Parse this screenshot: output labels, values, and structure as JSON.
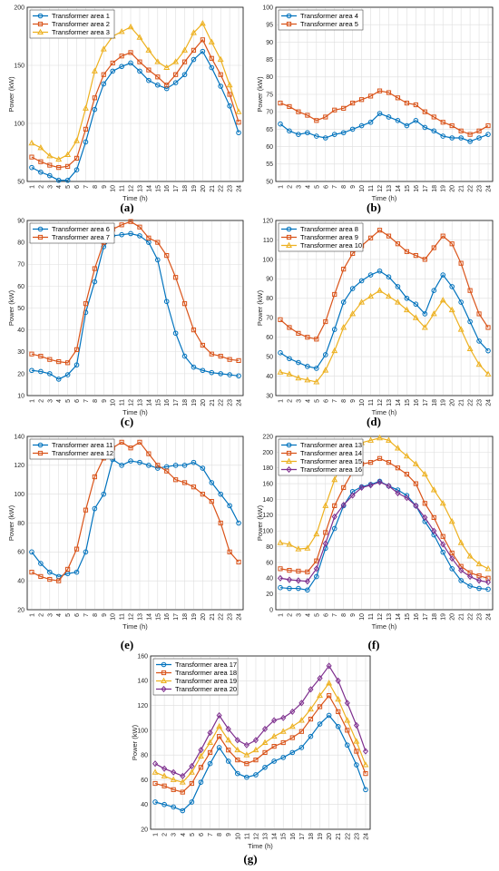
{
  "colors": {
    "blue": "#0072BD",
    "orange": "#D95319",
    "yellow": "#EDB120",
    "purple": "#7E2F8E",
    "grid": "#dedede",
    "axis": "#262626"
  },
  "chart_data": [
    {
      "type": "line",
      "panel": "(a)",
      "xlabel": "Time (h)",
      "ylabel": "Power (kW)",
      "x": [
        1,
        2,
        3,
        4,
        5,
        6,
        7,
        8,
        9,
        10,
        11,
        12,
        13,
        14,
        15,
        16,
        17,
        18,
        19,
        20,
        21,
        22,
        23,
        24
      ],
      "xticks": [
        "1",
        "2",
        "3",
        "4",
        "5",
        "6",
        "7",
        "8",
        "9",
        "10",
        "11",
        "12",
        "13",
        "14",
        "15",
        "16",
        "17",
        "18",
        "19",
        "20",
        "21",
        "22",
        "23",
        "24"
      ],
      "ylim": [
        50,
        200
      ],
      "yticks": [
        50,
        100,
        150,
        200
      ],
      "grid": true,
      "legend": "top-left",
      "series": [
        {
          "name": "Transformer area 1",
          "color": "#0072BD",
          "marker": "circle",
          "values": [
            62,
            58,
            55,
            51,
            51,
            60,
            84,
            112,
            134,
            145,
            149,
            152,
            145,
            137,
            133,
            130,
            135,
            142,
            155,
            162,
            148,
            132,
            115,
            92
          ]
        },
        {
          "name": "Transformer area 2",
          "color": "#D95319",
          "marker": "square",
          "values": [
            71,
            67,
            64,
            62,
            63,
            70,
            95,
            122,
            142,
            152,
            158,
            161,
            153,
            146,
            140,
            133,
            142,
            153,
            163,
            172,
            156,
            142,
            125,
            101
          ]
        },
        {
          "name": "Transformer area 3",
          "color": "#EDB120",
          "marker": "triangle",
          "values": [
            83,
            79,
            72,
            69,
            73,
            85,
            113,
            145,
            164,
            175,
            179,
            183,
            174,
            163,
            153,
            148,
            153,
            163,
            178,
            186,
            170,
            155,
            133,
            110
          ]
        }
      ]
    },
    {
      "type": "line",
      "panel": "(b)",
      "xlabel": "Time (h)",
      "ylabel": "Power (kW)",
      "x": [
        1,
        2,
        3,
        4,
        5,
        6,
        7,
        8,
        9,
        10,
        11,
        12,
        13,
        14,
        15,
        16,
        17,
        18,
        19,
        20,
        21,
        22,
        23,
        24
      ],
      "xticks": [
        "1",
        "2",
        "3",
        "4",
        "5",
        "6",
        "7",
        "8",
        "9",
        "10",
        "11",
        "12",
        "13",
        "14",
        "15",
        "16",
        "17",
        "18",
        "19",
        "20",
        "21",
        "22",
        "23",
        "24"
      ],
      "ylim": [
        50,
        100
      ],
      "yticks": [
        50,
        55,
        60,
        65,
        70,
        75,
        80,
        85,
        90,
        95,
        100
      ],
      "grid": true,
      "legend": "top-left",
      "series": [
        {
          "name": "Transformer area 4",
          "color": "#0072BD",
          "marker": "circle",
          "values": [
            66.5,
            64.5,
            63.5,
            64,
            63,
            62.5,
            63.5,
            64,
            65,
            66,
            67,
            69.5,
            68.5,
            67.5,
            66,
            67.5,
            65.5,
            64.5,
            63,
            62.5,
            62.5,
            61.5,
            62.5,
            63.5
          ]
        },
        {
          "name": "Transformer area 5",
          "color": "#D95319",
          "marker": "square",
          "values": [
            72.5,
            71.5,
            70,
            69,
            67.5,
            68.5,
            70.5,
            71,
            72.5,
            73.5,
            74.5,
            76,
            75.5,
            74,
            72.5,
            72,
            70,
            68.5,
            67,
            66,
            64.5,
            63.5,
            64.5,
            66
          ]
        }
      ]
    },
    {
      "type": "line",
      "panel": "(c)",
      "xlabel": "Time (h)",
      "ylabel": "Power (kW)",
      "x": [
        1,
        2,
        3,
        4,
        5,
        6,
        7,
        8,
        9,
        10,
        11,
        12,
        13,
        14,
        15,
        16,
        17,
        18,
        19,
        20,
        21,
        22,
        23,
        24
      ],
      "xticks": [
        "1",
        "2",
        "3",
        "4",
        "5",
        "6",
        "7",
        "8",
        "9",
        "10",
        "11",
        "12",
        "13",
        "14",
        "15",
        "16",
        "17",
        "18",
        "19",
        "20",
        "21",
        "22",
        "23",
        "24"
      ],
      "ylim": [
        10,
        90
      ],
      "yticks": [
        10,
        20,
        30,
        40,
        50,
        60,
        70,
        80,
        90
      ],
      "grid": true,
      "legend": "top-left",
      "series": [
        {
          "name": "Transformer area 6",
          "color": "#0072BD",
          "marker": "circle",
          "values": [
            21.5,
            21,
            20,
            17.5,
            19.5,
            24,
            48,
            62,
            78,
            83,
            83.5,
            84,
            83,
            80,
            72,
            53,
            38.5,
            28,
            23,
            21.5,
            20.5,
            20,
            19.5,
            19
          ]
        },
        {
          "name": "Transformer area 7",
          "color": "#D95319",
          "marker": "square",
          "values": [
            29,
            28,
            26.5,
            25.5,
            25,
            31,
            52,
            68,
            80,
            86,
            88,
            89.5,
            87,
            82,
            80,
            74,
            64,
            52,
            40,
            33,
            29,
            28,
            26.5,
            26
          ]
        }
      ]
    },
    {
      "type": "line",
      "panel": "(d)",
      "xlabel": "Time (h)",
      "ylabel": "Power (kW)",
      "x": [
        1,
        2,
        3,
        4,
        5,
        6,
        7,
        8,
        9,
        10,
        11,
        12,
        13,
        14,
        15,
        16,
        17,
        18,
        19,
        20,
        21,
        22,
        23,
        24
      ],
      "xticks": [
        "1",
        "2",
        "3",
        "4",
        "5",
        "6",
        "7",
        "8",
        "9",
        "10",
        "11",
        "12",
        "13",
        "14",
        "15",
        "16",
        "17",
        "18",
        "19",
        "20",
        "21",
        "22",
        "23",
        "24"
      ],
      "ylim": [
        30,
        120
      ],
      "yticks": [
        30,
        40,
        50,
        60,
        70,
        80,
        90,
        100,
        110,
        120
      ],
      "grid": true,
      "legend": "top-left",
      "series": [
        {
          "name": "Transformer area 8",
          "color": "#0072BD",
          "marker": "circle",
          "values": [
            52,
            49,
            47,
            45,
            44,
            51,
            64,
            78,
            85,
            89,
            92,
            94,
            91,
            86,
            80,
            77,
            72,
            84,
            92,
            86,
            78,
            68,
            58,
            53
          ]
        },
        {
          "name": "Transformer area 9",
          "color": "#D95319",
          "marker": "square",
          "values": [
            69,
            65,
            62,
            60,
            59,
            68,
            82,
            95,
            103,
            107,
            111,
            115,
            112,
            108,
            104,
            102,
            100,
            106,
            112,
            108,
            98,
            84,
            72,
            65
          ]
        },
        {
          "name": "Transformer area 10",
          "color": "#EDB120",
          "marker": "triangle",
          "values": [
            42,
            41,
            39,
            38,
            37,
            43,
            53,
            65,
            72,
            78,
            81,
            84,
            81,
            78,
            74,
            70,
            65,
            72,
            79,
            74,
            64,
            54,
            46,
            41
          ]
        }
      ]
    },
    {
      "type": "line",
      "panel": "(e)",
      "xlabel": "Time (h)",
      "ylabel": "Power (kW)",
      "x": [
        1,
        2,
        3,
        4,
        5,
        6,
        7,
        8,
        9,
        10,
        11,
        12,
        13,
        14,
        15,
        16,
        17,
        18,
        19,
        20,
        21,
        22,
        23,
        24
      ],
      "xticks": [
        "1",
        "2",
        "3",
        "4",
        "5",
        "6",
        "7",
        "8",
        "9",
        "10",
        "11",
        "12",
        "13",
        "14",
        "15",
        "16",
        "17",
        "18",
        "19",
        "20",
        "21",
        "22",
        "23",
        "24"
      ],
      "ylim": [
        20,
        140
      ],
      "yticks": [
        20,
        40,
        60,
        80,
        100,
        120,
        140
      ],
      "grid": true,
      "legend": "top-left",
      "series": [
        {
          "name": "Transformer area 11",
          "color": "#0072BD",
          "marker": "circle",
          "values": [
            60,
            52,
            46,
            43,
            45,
            46,
            60,
            90,
            100,
            124,
            120,
            123,
            122,
            120,
            118,
            119,
            120,
            120,
            122,
            118,
            108,
            100,
            92,
            80
          ]
        },
        {
          "name": "Transformer area 12",
          "color": "#D95319",
          "marker": "square",
          "values": [
            46,
            43,
            41,
            40,
            48,
            62,
            89,
            112,
            125,
            132,
            136,
            132,
            136,
            128,
            120,
            116,
            110,
            108,
            105,
            100,
            95,
            80,
            60,
            53
          ]
        }
      ]
    },
    {
      "type": "line",
      "panel": "(f)",
      "xlabel": "Time (h)",
      "ylabel": "Power (kW)",
      "x": [
        1,
        2,
        3,
        4,
        5,
        6,
        7,
        8,
        9,
        10,
        11,
        12,
        13,
        14,
        15,
        16,
        17,
        18,
        19,
        20,
        21,
        22,
        23,
        24
      ],
      "xticks": [
        "1",
        "2",
        "3",
        "4",
        "5",
        "6",
        "7",
        "8",
        "9",
        "10",
        "11",
        "12",
        "13",
        "14",
        "15",
        "16",
        "17",
        "18",
        "19",
        "20",
        "21",
        "22",
        "23",
        "24"
      ],
      "ylim": [
        0,
        220
      ],
      "yticks": [
        0,
        20,
        40,
        60,
        80,
        100,
        120,
        140,
        160,
        180,
        200,
        220
      ],
      "grid": true,
      "legend": "top-left",
      "series": [
        {
          "name": "Transformer area 13",
          "color": "#0072BD",
          "marker": "circle",
          "values": [
            28,
            27,
            27,
            25,
            42,
            78,
            103,
            132,
            150,
            156,
            159,
            163,
            157,
            152,
            145,
            132,
            112,
            95,
            73,
            52,
            37,
            30,
            27,
            26
          ]
        },
        {
          "name": "Transformer area 14",
          "color": "#D95319",
          "marker": "square",
          "values": [
            52,
            50,
            49,
            48,
            62,
            98,
            132,
            155,
            175,
            185,
            187,
            192,
            187,
            180,
            172,
            160,
            135,
            117,
            93,
            72,
            55,
            47,
            43,
            40
          ]
        },
        {
          "name": "Transformer area 15",
          "color": "#EDB120",
          "marker": "triangle",
          "values": [
            85,
            83,
            77,
            78,
            96,
            132,
            165,
            190,
            205,
            212,
            215,
            218,
            215,
            205,
            195,
            185,
            172,
            152,
            135,
            112,
            85,
            68,
            58,
            52
          ]
        },
        {
          "name": "Transformer area 16",
          "color": "#7E2F8E",
          "marker": "diamond",
          "values": [
            40,
            38,
            37,
            36,
            52,
            84,
            118,
            133,
            145,
            155,
            158,
            162,
            157,
            148,
            142,
            132,
            117,
            100,
            83,
            65,
            50,
            42,
            37,
            35
          ]
        }
      ]
    },
    {
      "type": "line",
      "panel": "(g)",
      "xlabel": "Time (h)",
      "ylabel": "Power (kW)",
      "x": [
        1,
        2,
        3,
        4,
        5,
        6,
        7,
        8,
        9,
        10,
        11,
        12,
        13,
        14,
        15,
        16,
        17,
        18,
        19,
        20,
        21,
        22,
        23,
        24
      ],
      "xticks": [
        "1",
        "2",
        "3",
        "4",
        "5",
        "6",
        "7",
        "8",
        "9",
        "10",
        "11",
        "12",
        "13",
        "14",
        "15",
        "16",
        "17",
        "18",
        "19",
        "20",
        "21",
        "22",
        "23",
        "24"
      ],
      "ylim": [
        20,
        160
      ],
      "yticks": [
        20,
        40,
        60,
        80,
        100,
        120,
        140,
        160
      ],
      "grid": true,
      "legend": "top-left",
      "series": [
        {
          "name": "Transformer area 17",
          "color": "#0072BD",
          "marker": "circle",
          "values": [
            42,
            40,
            38,
            35,
            42,
            58,
            73,
            86,
            75,
            65,
            62,
            64,
            70,
            75,
            78,
            82,
            86,
            95,
            105,
            112,
            103,
            88,
            72,
            52
          ]
        },
        {
          "name": "Transformer area 18",
          "color": "#D95319",
          "marker": "square",
          "values": [
            57,
            55,
            52,
            50,
            57,
            70,
            82,
            95,
            84,
            76,
            73,
            76,
            82,
            87,
            90,
            94,
            99,
            109,
            119,
            128,
            115,
            100,
            83,
            65
          ]
        },
        {
          "name": "Transformer area 19",
          "color": "#EDB120",
          "marker": "triangle",
          "values": [
            66,
            63,
            60,
            58,
            66,
            79,
            90,
            103,
            92,
            84,
            80,
            84,
            90,
            95,
            99,
            103,
            108,
            117,
            128,
            138,
            125,
            108,
            91,
            72
          ]
        },
        {
          "name": "Transformer area 20",
          "color": "#7E2F8E",
          "marker": "diamond",
          "values": [
            73,
            69,
            66,
            63,
            71,
            84,
            98,
            112,
            101,
            92,
            88,
            92,
            101,
            108,
            110,
            115,
            122,
            133,
            142,
            152,
            140,
            122,
            104,
            83
          ]
        }
      ]
    }
  ]
}
